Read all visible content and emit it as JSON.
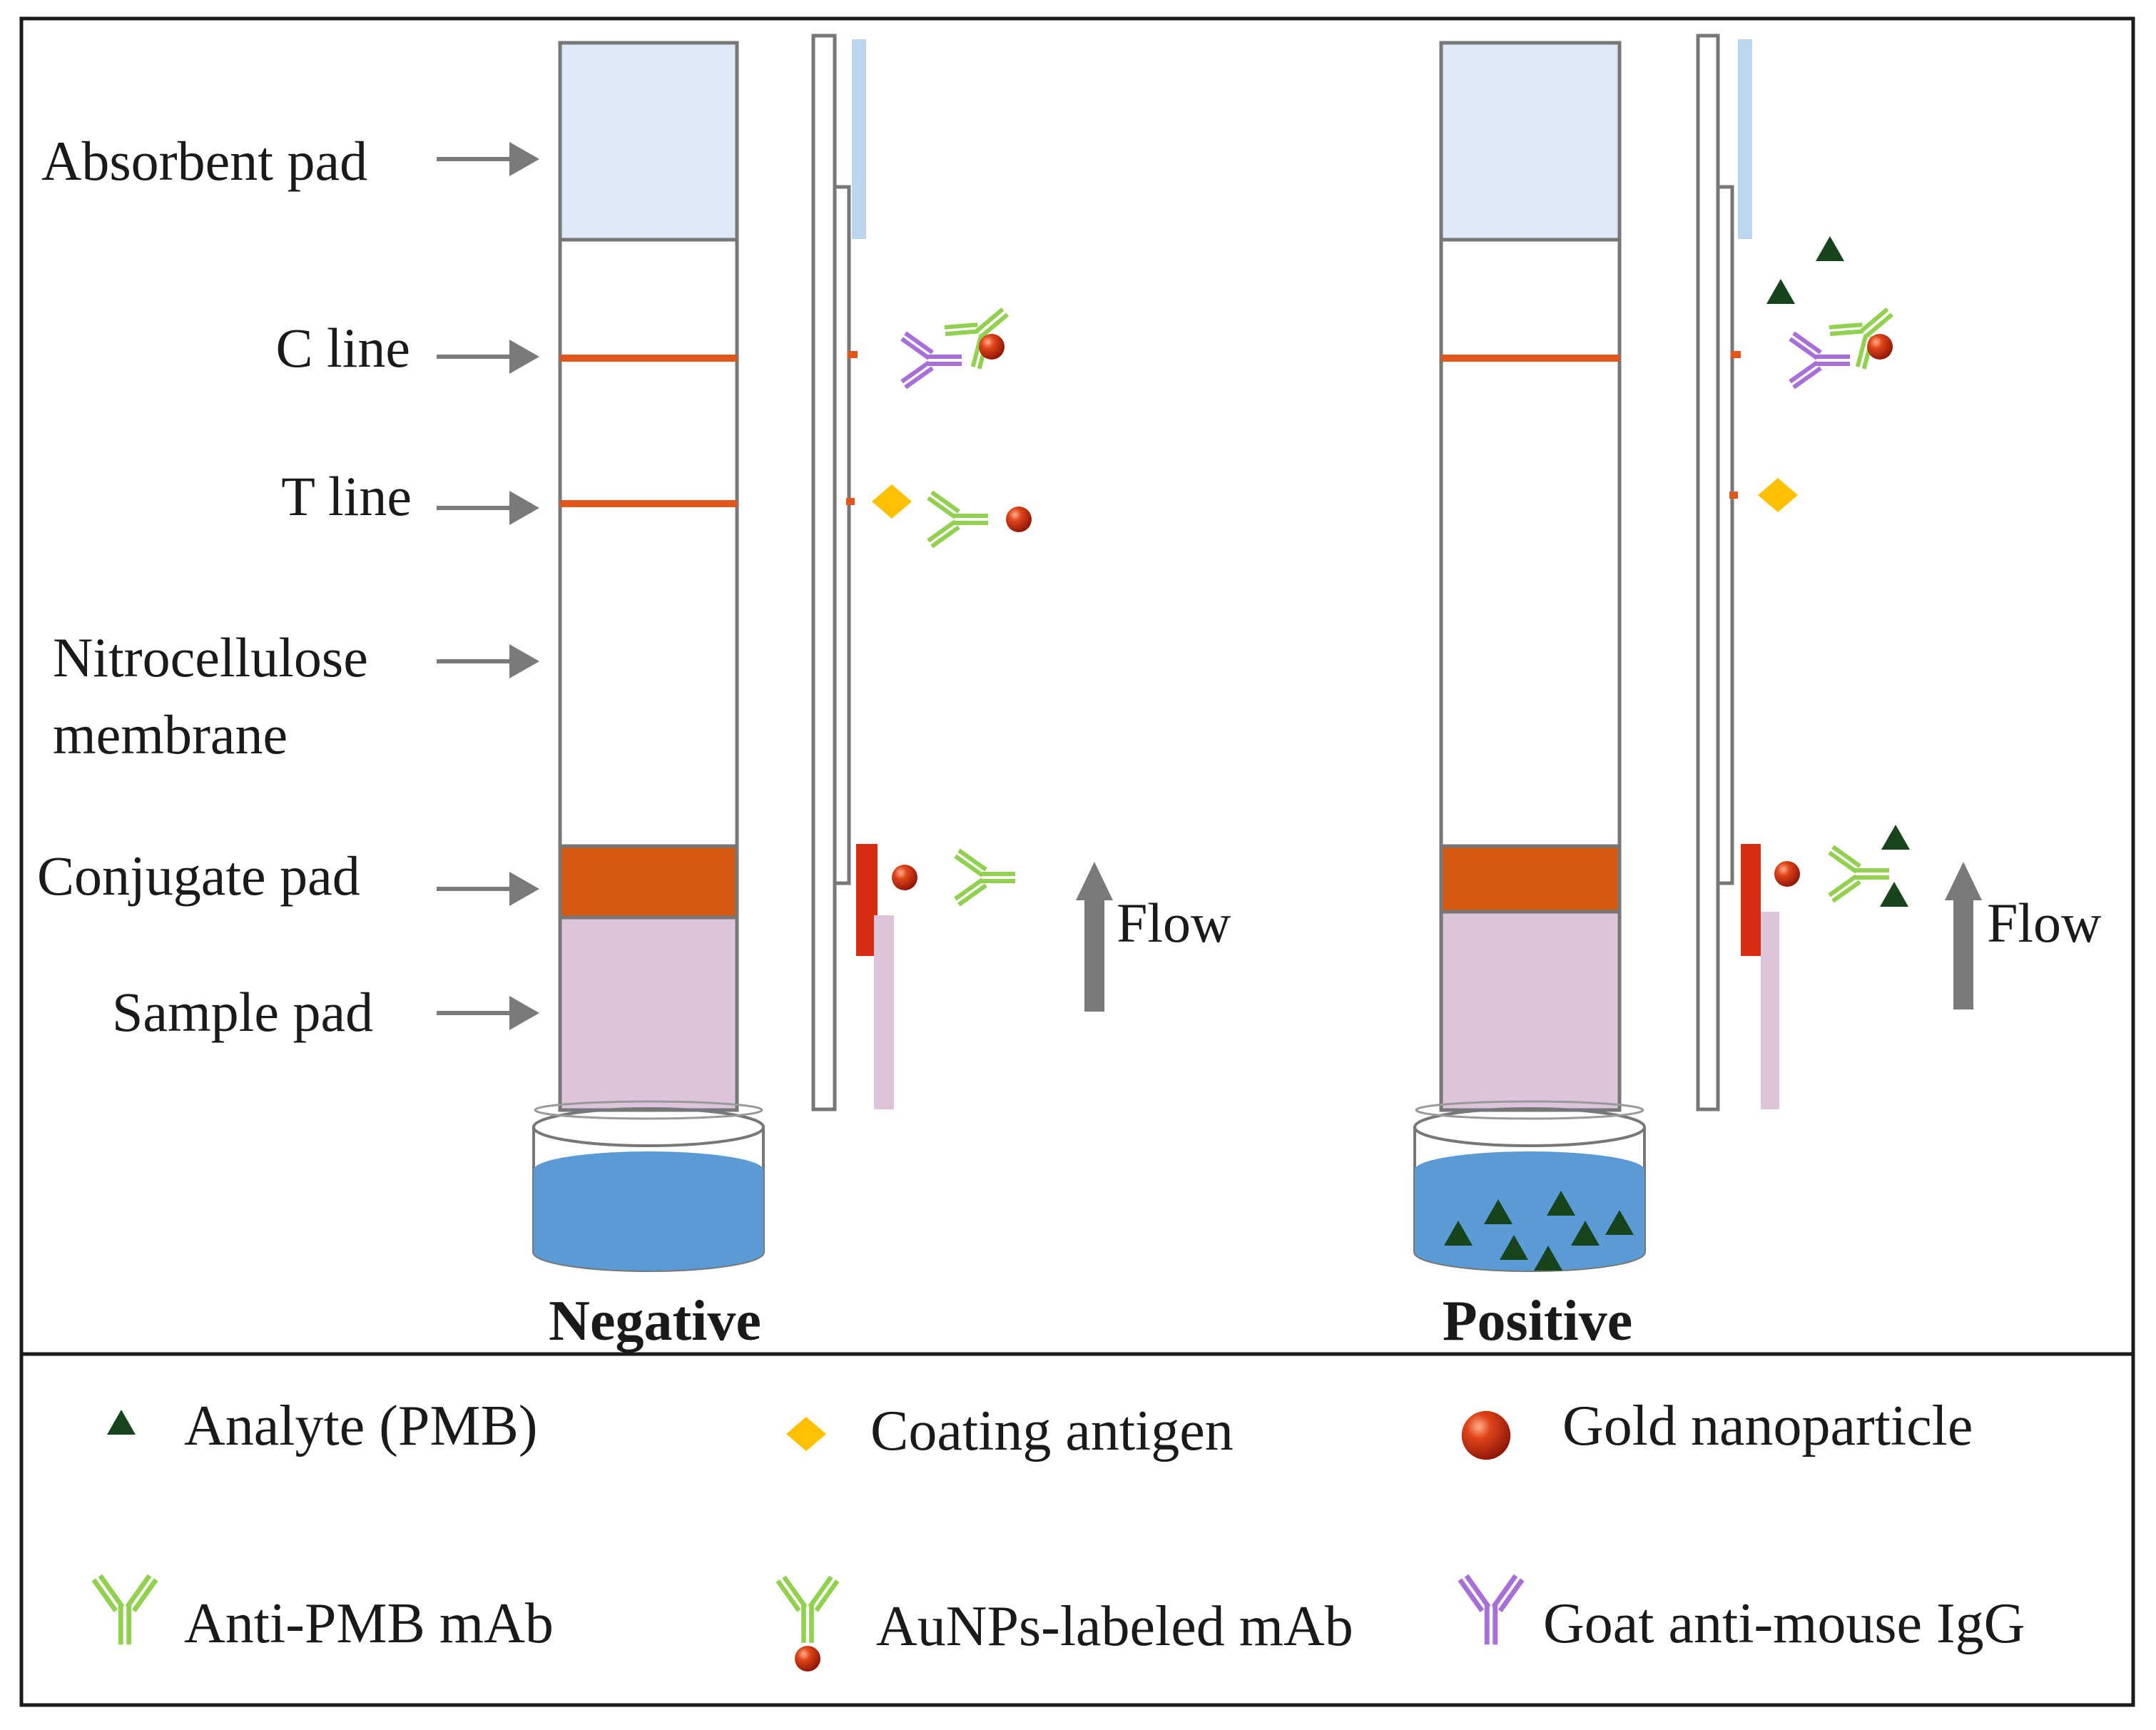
{
  "figure": {
    "part_labels": {
      "absorbent_pad": "Absorbent pad",
      "c_line": "C line",
      "t_line": "T line",
      "nitrocellulose_line1": "Nitrocellulose",
      "nitrocellulose_line2": "membrane",
      "conjugate_pad": "Conjugate pad",
      "sample_pad": "Sample pad"
    },
    "flow_label": "Flow",
    "captions": {
      "negative": "Negative",
      "positive": "Positive"
    },
    "legend": {
      "analyte": "Analyte (PMB)",
      "coating_antigen": "Coating antigen",
      "gold_nanoparticle": "Gold nanoparticle",
      "anti_pmb_mab": "Anti-PMB mAb",
      "aunps_labeled_mab": "AuNPs-labeled mAb",
      "goat_anti_mouse_igg": "Goat anti-mouse IgG"
    },
    "colors": {
      "absorbent_pad": "#dde9f5",
      "conjugate_pad": "#d75a10",
      "sample_pad": "#dcc4da",
      "test_lines": "#e0561b",
      "solution": "#5b9bd5",
      "analyte": "#17441c",
      "coating_antigen": "#ffc000",
      "gold": "#d52c12",
      "anti_pmb": "#92d050",
      "goat_igg": "#a86fd9",
      "frame": "#777777"
    }
  }
}
